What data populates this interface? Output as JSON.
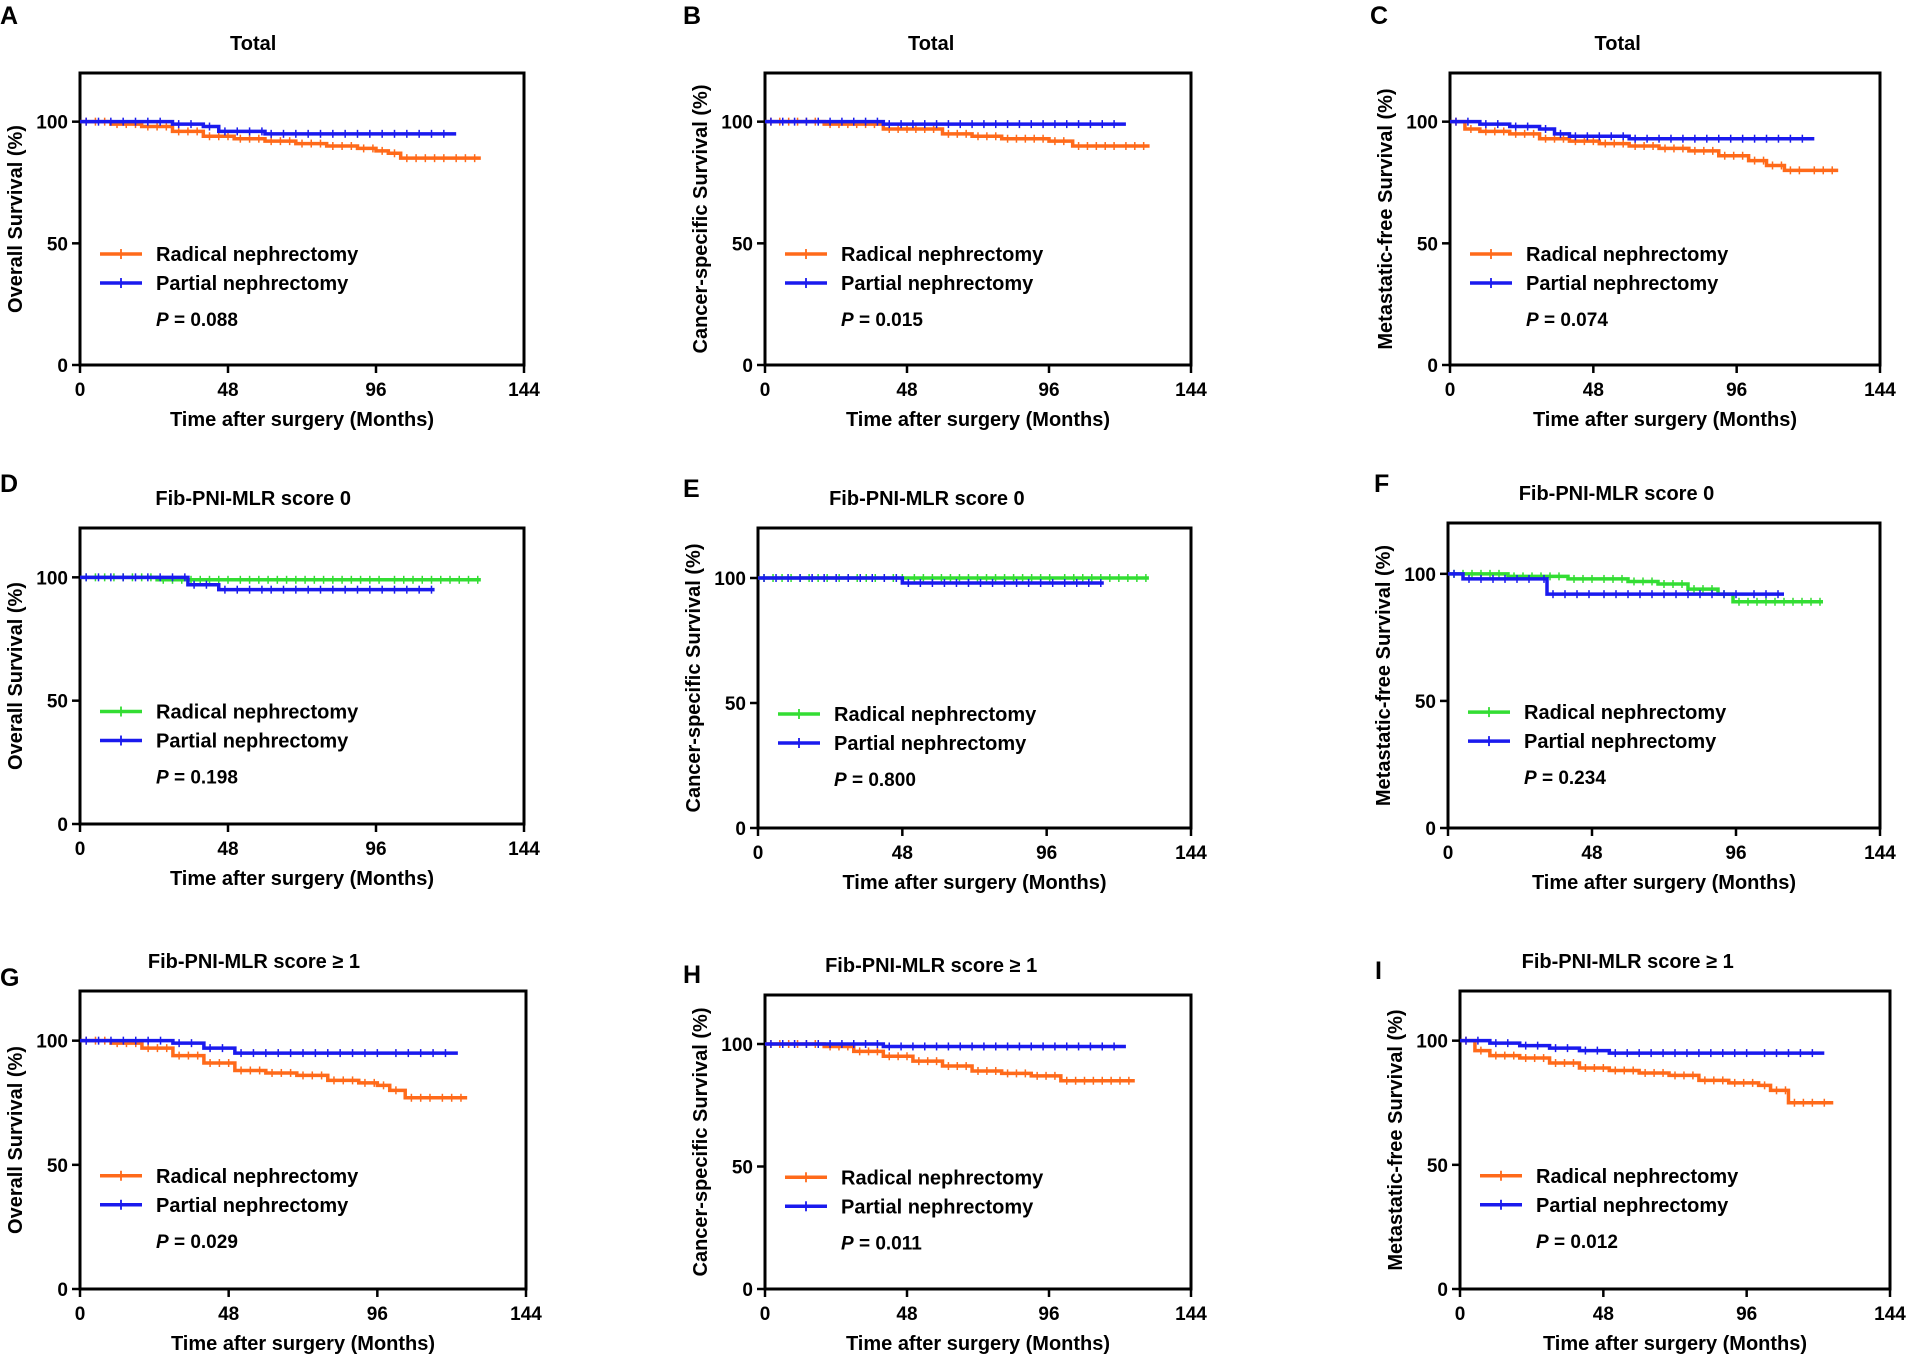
{
  "figure": {
    "x_axis_label": "Time after surgery (Months)",
    "x_ticks": [
      "0",
      "48",
      "96",
      "144"
    ],
    "y_ticks": [
      "0",
      "50",
      "100"
    ],
    "p_prefix": "P",
    "colors": {
      "radical_orange": "#ff6a1a",
      "radical_green": "#33dd33",
      "partial": "#1a1aee",
      "axis": "#000000"
    }
  },
  "chart_data": [
    {
      "type": "line",
      "panel": "A",
      "title": "Total",
      "ylabel": "Overall Survival (%)",
      "xlabel": "Time after surgery (Months)",
      "xlim": [
        0,
        144
      ],
      "ylim": [
        0,
        120
      ],
      "p_value": "= 0.088",
      "legend_location": "lower-left",
      "series": [
        {
          "name": "Radical nephrectomy",
          "color": "#ff6a1a",
          "x": [
            0,
            10,
            20,
            30,
            40,
            50,
            60,
            70,
            80,
            90,
            96,
            100,
            104,
            110,
            120,
            130
          ],
          "y": [
            100,
            99,
            98,
            96,
            94,
            93,
            92,
            91,
            90,
            89,
            88,
            87,
            85,
            85,
            85,
            85
          ]
        },
        {
          "name": "Partial nephrectomy",
          "color": "#1a1aee",
          "x": [
            0,
            20,
            30,
            40,
            45,
            60,
            80,
            100,
            122
          ],
          "y": [
            100,
            100,
            99,
            98,
            96,
            95,
            95,
            95,
            95
          ]
        }
      ]
    },
    {
      "type": "line",
      "panel": "B",
      "title": "Total",
      "ylabel": "Cancer-specific Survival (%)",
      "xlabel": "Time after surgery (Months)",
      "xlim": [
        0,
        144
      ],
      "ylim": [
        0,
        120
      ],
      "p_value": "= 0.015",
      "legend_location": "lower-left",
      "series": [
        {
          "name": "Radical nephrectomy",
          "color": "#ff6a1a",
          "x": [
            0,
            20,
            40,
            60,
            70,
            80,
            96,
            104,
            120,
            130
          ],
          "y": [
            100,
            99,
            97,
            95,
            94,
            93,
            92,
            90,
            90,
            90
          ]
        },
        {
          "name": "Partial nephrectomy",
          "color": "#1a1aee",
          "x": [
            0,
            20,
            40,
            60,
            80,
            100,
            122
          ],
          "y": [
            100,
            100,
            99,
            99,
            99,
            99,
            99
          ]
        }
      ]
    },
    {
      "type": "line",
      "panel": "C",
      "title": "Total",
      "ylabel": "Metastatic-free Survival (%)",
      "xlabel": "Time after surgery (Months)",
      "xlim": [
        0,
        144
      ],
      "ylim": [
        0,
        120
      ],
      "p_value": "= 0.074",
      "legend_location": "lower-left",
      "series": [
        {
          "name": "Radical nephrectomy",
          "color": "#ff6a1a",
          "x": [
            0,
            5,
            10,
            20,
            30,
            40,
            50,
            60,
            70,
            80,
            90,
            100,
            106,
            112,
            120,
            130
          ],
          "y": [
            100,
            97,
            96,
            95,
            93,
            92,
            91,
            90,
            89,
            88,
            86,
            84,
            82,
            80,
            80,
            80
          ]
        },
        {
          "name": "Partial nephrectomy",
          "color": "#1a1aee",
          "x": [
            0,
            10,
            20,
            30,
            35,
            40,
            60,
            80,
            100,
            122
          ],
          "y": [
            100,
            99,
            98,
            97,
            95,
            94,
            93,
            93,
            93,
            93
          ]
        }
      ]
    },
    {
      "type": "line",
      "panel": "D",
      "title": "Fib-PNI-MLR score 0",
      "ylabel": "Overall Survival (%)",
      "xlabel": "Time after surgery (Months)",
      "xlim": [
        0,
        144
      ],
      "ylim": [
        0,
        120
      ],
      "p_value": "= 0.198",
      "legend_location": "lower-left",
      "series": [
        {
          "name": "Radical nephrectomy",
          "color": "#33dd33",
          "x": [
            0,
            25,
            50,
            80,
            100,
            130
          ],
          "y": [
            100,
            99,
            99,
            99,
            99,
            99
          ]
        },
        {
          "name": "Partial nephrectomy",
          "color": "#1a1aee",
          "x": [
            0,
            20,
            35,
            45,
            60,
            80,
            115
          ],
          "y": [
            100,
            100,
            97,
            95,
            95,
            95,
            95
          ]
        }
      ]
    },
    {
      "type": "line",
      "panel": "E",
      "title": "Fib-PNI-MLR score 0",
      "ylabel": "Cancer-specific Survival (%)",
      "xlabel": "Time after surgery (Months)",
      "xlim": [
        0,
        144
      ],
      "ylim": [
        0,
        120
      ],
      "p_value": "= 0.800",
      "legend_location": "lower-left",
      "series": [
        {
          "name": "Radical nephrectomy",
          "color": "#33dd33",
          "x": [
            0,
            25,
            50,
            80,
            100,
            130
          ],
          "y": [
            100,
            100,
            100,
            100,
            100,
            100
          ]
        },
        {
          "name": "Partial nephrectomy",
          "color": "#1a1aee",
          "x": [
            0,
            20,
            48,
            80,
            115
          ],
          "y": [
            100,
            100,
            98,
            98,
            98
          ]
        }
      ]
    },
    {
      "type": "line",
      "panel": "F",
      "title": "Fib-PNI-MLR score 0",
      "ylabel": "Metastatic-free Survival (%)",
      "xlabel": "Time after surgery (Months)",
      "xlim": [
        0,
        144
      ],
      "ylim": [
        0,
        120
      ],
      "p_value": "= 0.234",
      "legend_location": "lower-left",
      "series": [
        {
          "name": "Radical nephrectomy",
          "color": "#33dd33",
          "x": [
            0,
            20,
            40,
            50,
            60,
            70,
            80,
            90,
            95,
            110,
            125
          ],
          "y": [
            100,
            99,
            98,
            98,
            97,
            96,
            94,
            92,
            89,
            89,
            89
          ]
        },
        {
          "name": "Partial nephrectomy",
          "color": "#1a1aee",
          "x": [
            0,
            5,
            30,
            33,
            50,
            70,
            90,
            100,
            112
          ],
          "y": [
            100,
            98,
            98,
            92,
            92,
            92,
            92,
            92,
            92
          ]
        }
      ]
    },
    {
      "type": "line",
      "panel": "G",
      "title": "Fib-PNI-MLR score ≥ 1",
      "ylabel": "Overall Survival (%)",
      "xlabel": "Time after surgery (Months)",
      "xlim": [
        0,
        144
      ],
      "ylim": [
        0,
        120
      ],
      "p_value": "= 0.029",
      "legend_location": "lower-left",
      "series": [
        {
          "name": "Radical nephrectomy",
          "color": "#ff6a1a",
          "x": [
            0,
            10,
            20,
            30,
            40,
            50,
            60,
            70,
            80,
            90,
            96,
            100,
            105,
            115,
            125
          ],
          "y": [
            100,
            99,
            97,
            94,
            91,
            88,
            87,
            86,
            84,
            83,
            82,
            80,
            77,
            77,
            77
          ]
        },
        {
          "name": "Partial nephrectomy",
          "color": "#1a1aee",
          "x": [
            0,
            20,
            30,
            40,
            50,
            70,
            100,
            122
          ],
          "y": [
            100,
            100,
            99,
            97,
            95,
            95,
            95,
            95
          ]
        }
      ]
    },
    {
      "type": "line",
      "panel": "H",
      "title": "Fib-PNI-MLR score ≥ 1",
      "ylabel": "Cancer-specific Survival (%)",
      "xlabel": "Time after surgery (Months)",
      "xlim": [
        0,
        144
      ],
      "ylim": [
        0,
        120
      ],
      "p_value": "= 0.011",
      "legend_location": "lower-left",
      "series": [
        {
          "name": "Radical nephrectomy",
          "color": "#ff6a1a",
          "x": [
            0,
            20,
            30,
            40,
            50,
            60,
            70,
            80,
            90,
            100,
            125
          ],
          "y": [
            100,
            99,
            97,
            95,
            93,
            91,
            89,
            88,
            87,
            85,
            85
          ]
        },
        {
          "name": "Partial nephrectomy",
          "color": "#1a1aee",
          "x": [
            0,
            20,
            40,
            60,
            80,
            100,
            122
          ],
          "y": [
            100,
            100,
            99,
            99,
            99,
            99,
            99
          ]
        }
      ]
    },
    {
      "type": "line",
      "panel": "I",
      "title": "Fib-PNI-MLR score ≥ 1",
      "ylabel": "Metastatic-free Survival (%)",
      "xlabel": "Time after surgery (Months)",
      "xlim": [
        0,
        144
      ],
      "ylim": [
        0,
        120
      ],
      "p_value": "= 0.012",
      "legend_location": "lower-left",
      "series": [
        {
          "name": "Radical nephrectomy",
          "color": "#ff6a1a",
          "x": [
            0,
            5,
            10,
            20,
            30,
            40,
            50,
            60,
            70,
            80,
            90,
            100,
            104,
            110,
            120,
            125
          ],
          "y": [
            100,
            96,
            94,
            93,
            91,
            89,
            88,
            87,
            86,
            84,
            83,
            82,
            80,
            75,
            75,
            75
          ]
        },
        {
          "name": "Partial nephrectomy",
          "color": "#1a1aee",
          "x": [
            0,
            10,
            20,
            30,
            40,
            50,
            70,
            100,
            122
          ],
          "y": [
            100,
            99,
            98,
            97,
            96,
            95,
            95,
            95,
            95
          ]
        }
      ]
    }
  ]
}
